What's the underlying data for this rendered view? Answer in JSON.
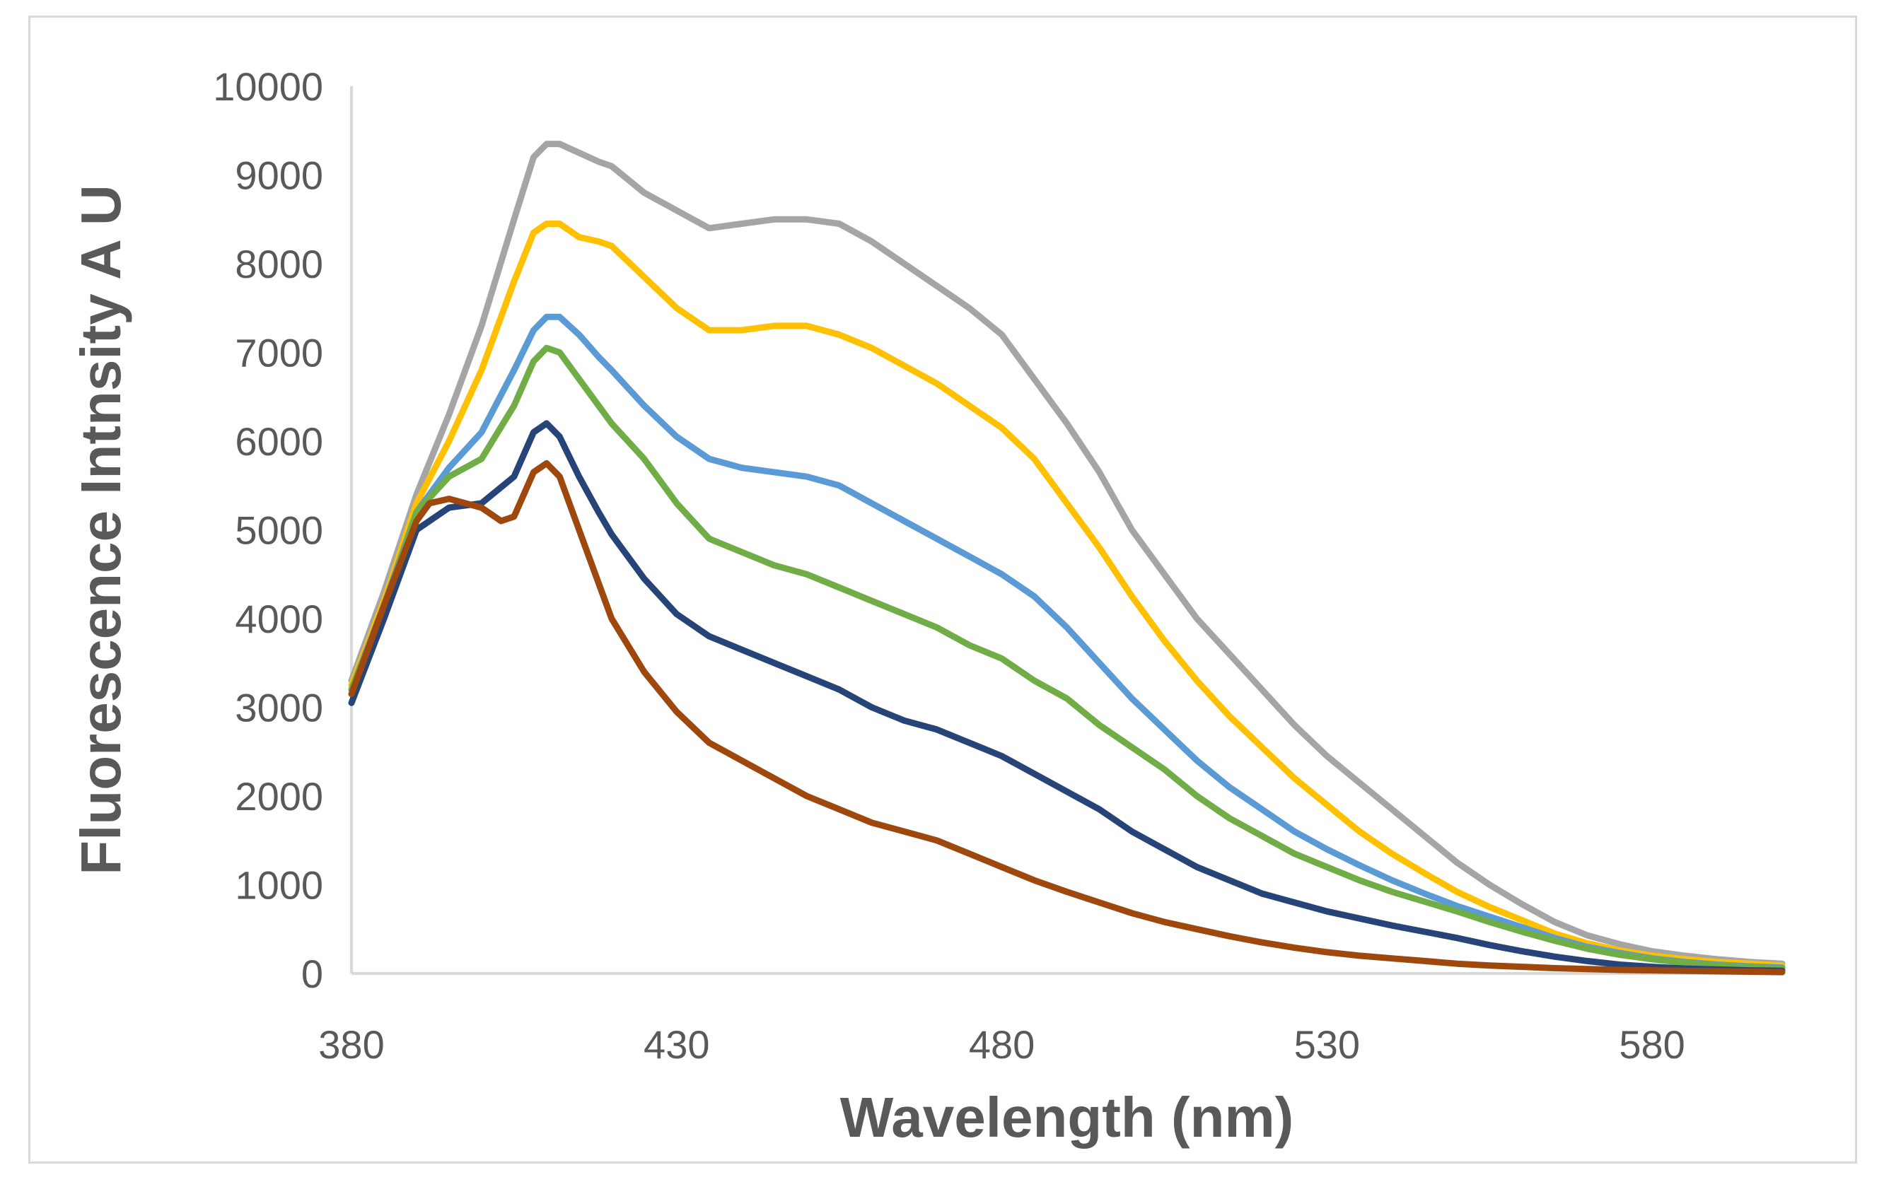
{
  "chart_data": {
    "type": "line",
    "title": "",
    "xlabel": "Wavelength (nm)",
    "ylabel": "Fluorescence Intnsity A U",
    "xlim": [
      380,
      600
    ],
    "ylim": [
      0,
      10000
    ],
    "xticks": [
      380,
      430,
      480,
      530,
      580
    ],
    "yticks": [
      0,
      1000,
      2000,
      3000,
      4000,
      5000,
      6000,
      7000,
      8000,
      9000,
      10000
    ],
    "grid": false,
    "legend": "none",
    "series": [
      {
        "name": "gray",
        "color": "#a5a5a5",
        "x": [
          380,
          385,
          390,
          395,
          400,
          405,
          408,
          410,
          412,
          415,
          418,
          420,
          425,
          430,
          435,
          440,
          445,
          450,
          455,
          460,
          465,
          470,
          475,
          480,
          485,
          490,
          495,
          500,
          505,
          510,
          515,
          520,
          525,
          530,
          535,
          540,
          545,
          550,
          555,
          560,
          565,
          570,
          575,
          580,
          585,
          590,
          595,
          600
        ],
        "y": [
          3300,
          4300,
          5400,
          6300,
          7300,
          8500,
          9200,
          9350,
          9350,
          9250,
          9150,
          9100,
          8800,
          8600,
          8400,
          8450,
          8500,
          8500,
          8450,
          8250,
          8000,
          7750,
          7500,
          7200,
          6700,
          6200,
          5650,
          5000,
          4500,
          4000,
          3600,
          3200,
          2800,
          2450,
          2150,
          1850,
          1550,
          1250,
          1000,
          780,
          580,
          430,
          330,
          250,
          200,
          160,
          130,
          110
        ]
      },
      {
        "name": "yellow",
        "color": "#ffc000",
        "x": [
          380,
          385,
          390,
          395,
          400,
          405,
          408,
          410,
          412,
          415,
          418,
          420,
          425,
          430,
          435,
          440,
          445,
          450,
          455,
          460,
          465,
          470,
          475,
          480,
          485,
          490,
          495,
          500,
          505,
          510,
          515,
          520,
          525,
          530,
          535,
          540,
          545,
          550,
          555,
          560,
          565,
          570,
          575,
          580,
          585,
          590,
          595,
          600
        ],
        "y": [
          3250,
          4200,
          5300,
          6000,
          6800,
          7800,
          8350,
          8450,
          8450,
          8300,
          8250,
          8200,
          7850,
          7500,
          7250,
          7250,
          7300,
          7300,
          7200,
          7050,
          6850,
          6650,
          6400,
          6150,
          5800,
          5300,
          4800,
          4250,
          3750,
          3300,
          2900,
          2550,
          2200,
          1900,
          1600,
          1350,
          1130,
          920,
          750,
          600,
          450,
          340,
          260,
          200,
          160,
          130,
          110,
          90
        ]
      },
      {
        "name": "light-blue",
        "color": "#5b9bd5",
        "x": [
          380,
          385,
          390,
          395,
          400,
          405,
          408,
          410,
          412,
          415,
          418,
          420,
          425,
          430,
          435,
          440,
          445,
          450,
          455,
          460,
          465,
          470,
          475,
          480,
          485,
          490,
          495,
          500,
          505,
          510,
          515,
          520,
          525,
          530,
          535,
          540,
          545,
          550,
          555,
          560,
          565,
          570,
          575,
          580,
          585,
          590,
          595,
          600
        ],
        "y": [
          3200,
          4150,
          5200,
          5700,
          6100,
          6800,
          7250,
          7400,
          7400,
          7200,
          6950,
          6800,
          6400,
          6050,
          5800,
          5700,
          5650,
          5600,
          5500,
          5300,
          5100,
          4900,
          4700,
          4500,
          4250,
          3900,
          3500,
          3100,
          2750,
          2400,
          2100,
          1850,
          1600,
          1400,
          1220,
          1050,
          900,
          760,
          640,
          520,
          400,
          300,
          230,
          170,
          130,
          100,
          80,
          65
        ]
      },
      {
        "name": "green",
        "color": "#70ad47",
        "x": [
          380,
          385,
          390,
          395,
          400,
          405,
          408,
          410,
          412,
          415,
          418,
          420,
          425,
          430,
          435,
          440,
          445,
          450,
          455,
          460,
          465,
          470,
          475,
          480,
          485,
          490,
          495,
          500,
          505,
          510,
          515,
          520,
          525,
          530,
          535,
          540,
          545,
          550,
          555,
          560,
          565,
          570,
          575,
          580,
          585,
          590,
          595,
          600
        ],
        "y": [
          3200,
          4100,
          5200,
          5600,
          5800,
          6400,
          6900,
          7050,
          7000,
          6700,
          6400,
          6200,
          5800,
          5300,
          4900,
          4750,
          4600,
          4500,
          4350,
          4200,
          4050,
          3900,
          3700,
          3550,
          3300,
          3100,
          2800,
          2550,
          2300,
          2000,
          1750,
          1550,
          1350,
          1200,
          1050,
          920,
          810,
          700,
          580,
          470,
          370,
          280,
          210,
          160,
          120,
          90,
          70,
          55
        ]
      },
      {
        "name": "navy",
        "color": "#264478",
        "x": [
          380,
          385,
          390,
          395,
          400,
          405,
          408,
          410,
          412,
          415,
          418,
          420,
          425,
          430,
          435,
          440,
          445,
          450,
          455,
          460,
          465,
          470,
          475,
          480,
          485,
          490,
          495,
          500,
          505,
          510,
          515,
          520,
          525,
          530,
          535,
          540,
          545,
          550,
          555,
          560,
          565,
          570,
          575,
          580,
          585,
          590,
          595,
          600
        ],
        "y": [
          3050,
          4000,
          5000,
          5250,
          5300,
          5600,
          6100,
          6200,
          6050,
          5600,
          5200,
          4950,
          4450,
          4050,
          3800,
          3650,
          3500,
          3350,
          3200,
          3000,
          2850,
          2750,
          2600,
          2450,
          2250,
          2050,
          1850,
          1600,
          1400,
          1200,
          1050,
          900,
          800,
          700,
          620,
          540,
          470,
          400,
          320,
          250,
          190,
          140,
          100,
          75,
          55,
          45,
          35,
          30
        ]
      },
      {
        "name": "brown",
        "color": "#9e480e",
        "x": [
          380,
          385,
          390,
          392,
          395,
          400,
          403,
          405,
          408,
          410,
          412,
          415,
          418,
          420,
          425,
          430,
          435,
          440,
          445,
          450,
          455,
          460,
          465,
          470,
          475,
          480,
          485,
          490,
          495,
          500,
          505,
          510,
          515,
          520,
          525,
          530,
          535,
          540,
          545,
          550,
          555,
          560,
          565,
          570,
          575,
          580,
          585,
          590,
          595,
          600
        ],
        "y": [
          3150,
          4150,
          5100,
          5300,
          5350,
          5250,
          5100,
          5150,
          5650,
          5750,
          5600,
          5000,
          4400,
          4000,
          3400,
          2950,
          2600,
          2400,
          2200,
          2000,
          1850,
          1700,
          1600,
          1500,
          1350,
          1200,
          1050,
          920,
          800,
          680,
          580,
          500,
          420,
          350,
          290,
          240,
          200,
          170,
          140,
          110,
          90,
          75,
          60,
          50,
          40,
          35,
          30,
          25,
          20,
          15
        ]
      }
    ]
  }
}
